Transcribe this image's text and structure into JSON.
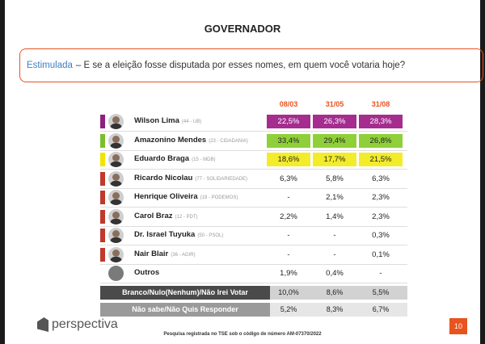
{
  "page": {
    "title": "GOVERNADOR",
    "question_tag": "Estimulada",
    "question_text": "– E se a eleição fosse disputada por esses nomes, em quem você votaria hoje?",
    "footer": "Pesquisa registrada no TSE sob o código de número AM-07370/2022",
    "page_number": "10",
    "logo": "perspectiva"
  },
  "chart_data": {
    "type": "table",
    "title": "GOVERNADOR",
    "columns": [
      "08/03",
      "31/05",
      "31/08"
    ],
    "rows": [
      {
        "name": "Wilson Lima",
        "party": "(44 - UB)",
        "values": [
          "22,5%",
          "26,3%",
          "28,3%"
        ],
        "highlight": "#8e1f7f",
        "fill": "#a42d8f",
        "text_color": "#ffffff"
      },
      {
        "name": "Amazonino Mendes",
        "party": "(23 - CIDADANIA)",
        "values": [
          "33,4%",
          "29,4%",
          "26,8%"
        ],
        "highlight": "#7bbf2c",
        "fill": "#8fd03a",
        "text_color": "#222222"
      },
      {
        "name": "Eduardo Braga",
        "party": "(15 - MDB)",
        "values": [
          "18,6%",
          "17,7%",
          "21,5%"
        ],
        "highlight": "#f0e400",
        "fill": "#f3ec2a",
        "text_color": "#222222"
      },
      {
        "name": "Ricardo Nicolau",
        "party": "(77 - SOLIDARIEDADE)",
        "values": [
          "6,3%",
          "5,8%",
          "6,3%"
        ],
        "highlight": "#c0392b",
        "fill": "",
        "text_color": "#222222"
      },
      {
        "name": "Henrique Oliveira",
        "party": "(19 - PODEMOS)",
        "values": [
          "-",
          "2,1%",
          "2,3%"
        ],
        "highlight": "#c0392b",
        "fill": "",
        "text_color": "#222222"
      },
      {
        "name": "Carol Braz",
        "party": "(12 - PDT)",
        "values": [
          "2,2%",
          "1,4%",
          "2,3%"
        ],
        "highlight": "#c0392b",
        "fill": "",
        "text_color": "#222222"
      },
      {
        "name": "Dr. Israel Tuyuka",
        "party": "(50 - PSOL)",
        "values": [
          "-",
          "-",
          "0,3%"
        ],
        "highlight": "#c0392b",
        "fill": "",
        "text_color": "#222222"
      },
      {
        "name": "Nair Blair",
        "party": "(36 - AGIR)",
        "values": [
          "-",
          "-",
          "0,1%"
        ],
        "highlight": "#c0392b",
        "fill": "",
        "text_color": "#222222"
      },
      {
        "name": "Outros",
        "party": "",
        "values": [
          "1,9%",
          "0,4%",
          "-"
        ],
        "highlight": "",
        "fill": "",
        "text_color": "#222222",
        "gray_avatar": true
      }
    ],
    "summary_rows": [
      {
        "label": "Branco/Nulo(Nenhum)/Não Irei Votar",
        "values": [
          "10,0%",
          "8,6%",
          "5,5%"
        ],
        "bg": "#4a4a4a"
      },
      {
        "label": "Não sabe/Não Quis Responder",
        "values": [
          "5,2%",
          "8,3%",
          "6,7%"
        ],
        "bg": "#9a9a9a"
      }
    ]
  }
}
